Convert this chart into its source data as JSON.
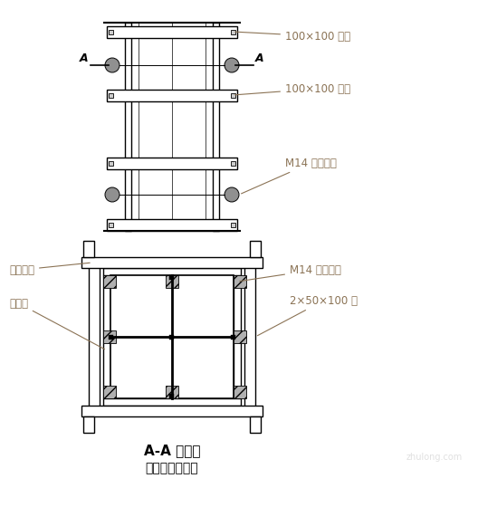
{
  "bg_color": "#ffffff",
  "line_color": "#000000",
  "gray_fill": "#909090",
  "hatch_fill": "#b0b0b0",
  "label_color": "#8B7355",
  "title_color": "#000000",
  "label_100x100_1": "100×100 万木",
  "label_100x100_2": "100×100 万木",
  "label_M14_top": "M14 对拉联紧",
  "label_xianwei": "限位螺橓",
  "label_jiaoheb": "胶合板",
  "label_M14_bot": "M14 对拉螺橓",
  "label_2x50x100": "2×50×100 方",
  "label_A_left": "A",
  "label_A_right": "A",
  "title1": "A-A 劑面图",
  "title2": "柱模安装示意图",
  "watermark": "zhulong.com",
  "fig_w": 5.49,
  "fig_h": 5.6,
  "dpi": 100
}
